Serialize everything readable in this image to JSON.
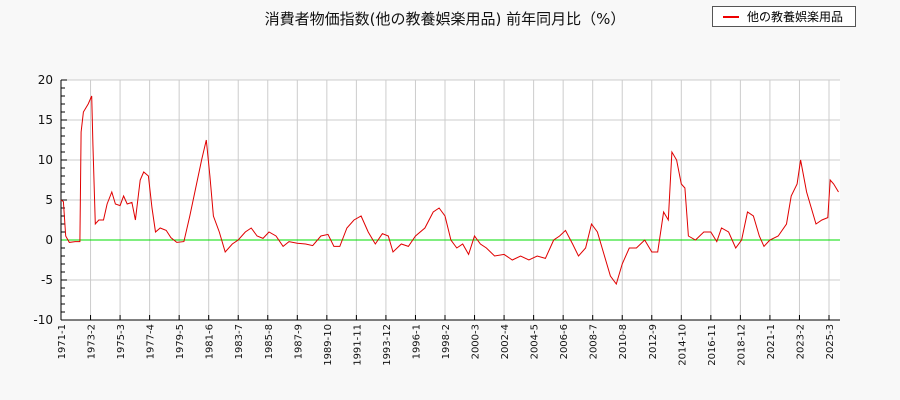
{
  "title": "消費者物価指数(他の教養娯楽用品) 前年同月比（%）",
  "legend": {
    "label": "他の教養娯楽用品",
    "color": "#e00000"
  },
  "colors": {
    "series": "#e00000",
    "zero_line": "#00dd00",
    "grid": "#cccccc",
    "plot_bg": "#ffffff",
    "page_bg": "#f8f8f8"
  },
  "chart_data": {
    "type": "line",
    "title": "消費者物価指数(他の教養娯楽用品) 前年同月比（%）",
    "xlabel": "",
    "ylabel": "",
    "ylim": [
      -10,
      20
    ],
    "yticks": [
      20,
      15,
      10,
      5,
      0,
      -5,
      -10
    ],
    "grid": true,
    "legend_position": "top-right",
    "x_tick_labels": [
      "1971-1",
      "1973-2",
      "1975-3",
      "1977-4",
      "1979-5",
      "1981-6",
      "1983-7",
      "1985-8",
      "1987-9",
      "1989-10",
      "1991-11",
      "1993-12",
      "1996-1",
      "1998-2",
      "2000-3",
      "2002-4",
      "2004-5",
      "2006-6",
      "2008-7",
      "2010-8",
      "2012-9",
      "2014-10",
      "2016-11",
      "2018-12",
      "2021-1",
      "2023-2",
      "2025-3"
    ],
    "series": [
      {
        "name": "他の教養娯楽用品",
        "points": [
          [
            "1971-1",
            5.0
          ],
          [
            "1971-3",
            4.8
          ],
          [
            "1971-5",
            0.5
          ],
          [
            "1971-8",
            -0.3
          ],
          [
            "1972-1",
            -0.2
          ],
          [
            "1972-5",
            -0.2
          ],
          [
            "1972-6",
            13.5
          ],
          [
            "1972-8",
            16.0
          ],
          [
            "1972-12",
            17.0
          ],
          [
            "1973-3",
            18.0
          ],
          [
            "1973-4",
            12.0
          ],
          [
            "1973-6",
            2.0
          ],
          [
            "1973-9",
            2.5
          ],
          [
            "1974-1",
            2.5
          ],
          [
            "1974-4",
            4.5
          ],
          [
            "1974-8",
            6.0
          ],
          [
            "1974-11",
            4.5
          ],
          [
            "1975-3",
            4.3
          ],
          [
            "1975-6",
            5.5
          ],
          [
            "1975-9",
            4.5
          ],
          [
            "1976-1",
            4.7
          ],
          [
            "1976-4",
            2.5
          ],
          [
            "1976-8",
            7.5
          ],
          [
            "1976-11",
            8.5
          ],
          [
            "1977-3",
            8.0
          ],
          [
            "1977-6",
            4.0
          ],
          [
            "1977-9",
            1.0
          ],
          [
            "1978-1",
            1.5
          ],
          [
            "1978-6",
            1.2
          ],
          [
            "1978-10",
            0.3
          ],
          [
            "1979-3",
            -0.3
          ],
          [
            "1979-9",
            -0.2
          ],
          [
            "1980-2",
            3.0
          ],
          [
            "1980-7",
            6.5
          ],
          [
            "1980-12",
            10.0
          ],
          [
            "1981-4",
            12.5
          ],
          [
            "1981-7",
            8.0
          ],
          [
            "1981-10",
            3.0
          ],
          [
            "1982-3",
            1.0
          ],
          [
            "1982-8",
            -1.5
          ],
          [
            "1983-2",
            -0.5
          ],
          [
            "1983-7",
            0.0
          ],
          [
            "1984-1",
            1.0
          ],
          [
            "1984-6",
            1.5
          ],
          [
            "1984-11",
            0.5
          ],
          [
            "1985-4",
            0.2
          ],
          [
            "1985-9",
            1.0
          ],
          [
            "1986-3",
            0.5
          ],
          [
            "1986-9",
            -0.8
          ],
          [
            "1987-2",
            -0.2
          ],
          [
            "1987-9",
            -0.4
          ],
          [
            "1988-4",
            -0.5
          ],
          [
            "1988-10",
            -0.7
          ],
          [
            "1989-5",
            0.5
          ],
          [
            "1989-11",
            0.7
          ],
          [
            "1990-4",
            -0.8
          ],
          [
            "1990-9",
            -0.8
          ],
          [
            "1991-3",
            1.5
          ],
          [
            "1991-9",
            2.5
          ],
          [
            "1992-3",
            3.0
          ],
          [
            "1992-9",
            1.0
          ],
          [
            "1993-3",
            -0.5
          ],
          [
            "1993-9",
            0.8
          ],
          [
            "1994-2",
            0.5
          ],
          [
            "1994-6",
            -1.5
          ],
          [
            "1995-1",
            -0.5
          ],
          [
            "1995-7",
            -0.8
          ],
          [
            "1996-1",
            0.5
          ],
          [
            "1996-9",
            1.5
          ],
          [
            "1997-4",
            3.5
          ],
          [
            "1997-9",
            4.0
          ],
          [
            "1998-2",
            3.0
          ],
          [
            "1998-7",
            0.0
          ],
          [
            "1998-12",
            -1.0
          ],
          [
            "1999-5",
            -0.5
          ],
          [
            "1999-10",
            -1.8
          ],
          [
            "2000-3",
            0.5
          ],
          [
            "2000-8",
            -0.5
          ],
          [
            "2001-1",
            -1.0
          ],
          [
            "2001-8",
            -2.0
          ],
          [
            "2002-4",
            -1.8
          ],
          [
            "2002-11",
            -2.5
          ],
          [
            "2003-6",
            -2.0
          ],
          [
            "2004-1",
            -2.5
          ],
          [
            "2004-8",
            -2.0
          ],
          [
            "2005-3",
            -2.3
          ],
          [
            "2005-10",
            0.0
          ],
          [
            "2006-3",
            0.5
          ],
          [
            "2006-8",
            1.2
          ],
          [
            "2007-2",
            -0.5
          ],
          [
            "2007-7",
            -2.0
          ],
          [
            "2008-1",
            -1.0
          ],
          [
            "2008-6",
            2.0
          ],
          [
            "2008-11",
            1.0
          ],
          [
            "2009-4",
            -1.5
          ],
          [
            "2009-10",
            -4.5
          ],
          [
            "2010-3",
            -5.5
          ],
          [
            "2010-8",
            -3.0
          ],
          [
            "2011-2",
            -1.0
          ],
          [
            "2011-8",
            -1.0
          ],
          [
            "2012-3",
            0.0
          ],
          [
            "2012-9",
            -1.5
          ],
          [
            "2013-2",
            -1.5
          ],
          [
            "2013-7",
            3.5
          ],
          [
            "2013-11",
            2.5
          ],
          [
            "2014-2",
            11.0
          ],
          [
            "2014-6",
            10.0
          ],
          [
            "2014-10",
            7.0
          ],
          [
            "2015-1",
            6.5
          ],
          [
            "2015-4",
            0.5
          ],
          [
            "2015-10",
            0.0
          ],
          [
            "2016-5",
            1.0
          ],
          [
            "2016-11",
            1.0
          ],
          [
            "2017-4",
            -0.2
          ],
          [
            "2017-8",
            1.5
          ],
          [
            "2018-2",
            1.0
          ],
          [
            "2018-8",
            -1.0
          ],
          [
            "2019-1",
            0.0
          ],
          [
            "2019-6",
            3.5
          ],
          [
            "2019-11",
            3.0
          ],
          [
            "2020-4",
            0.5
          ],
          [
            "2020-8",
            -0.8
          ],
          [
            "2021-1",
            0.0
          ],
          [
            "2021-8",
            0.5
          ],
          [
            "2022-3",
            2.0
          ],
          [
            "2022-7",
            5.5
          ],
          [
            "2022-12",
            7.0
          ],
          [
            "2023-3",
            10.0
          ],
          [
            "2023-8",
            6.0
          ],
          [
            "2023-12",
            4.0
          ],
          [
            "2024-4",
            2.0
          ],
          [
            "2024-9",
            2.5
          ],
          [
            "2025-2",
            2.8
          ],
          [
            "2025-4",
            7.5
          ],
          [
            "2025-7",
            7.0
          ],
          [
            "2025-11",
            6.0
          ]
        ]
      }
    ]
  }
}
